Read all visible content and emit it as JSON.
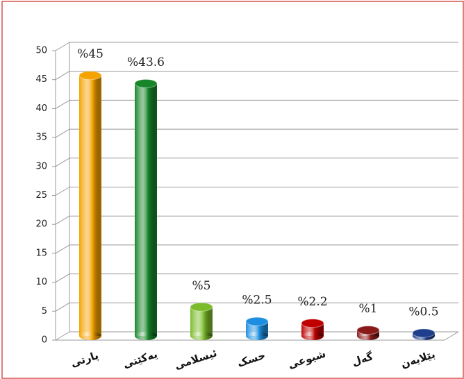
{
  "chart_data": {
    "type": "bar",
    "categories": [
      "پارتی",
      "یەکێتی",
      "ئیسلامی",
      "حسک",
      "شیوعی",
      "گەل",
      "بێلایەن"
    ],
    "values": [
      45,
      43.6,
      5,
      2.5,
      2.2,
      1,
      0.5
    ],
    "value_labels": [
      "%45",
      "%43.6",
      "%5",
      "%2.5",
      "%2.2",
      "%1",
      "%0.5"
    ],
    "colors": [
      "#f5a300",
      "#17862a",
      "#7cbc2c",
      "#1e8fe0",
      "#c00000",
      "#8b1a1a",
      "#1f3f8c"
    ],
    "ylim": [
      0,
      50
    ],
    "yticks": [
      0,
      5,
      10,
      15,
      20,
      25,
      30,
      35,
      40,
      45,
      50
    ],
    "grid": true
  }
}
